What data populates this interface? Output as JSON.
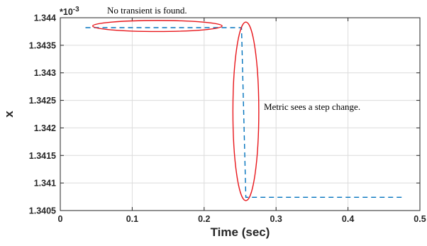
{
  "chart_data": {
    "type": "line",
    "xlabel": "Time (sec)",
    "ylabel": "x",
    "xlim": [
      0,
      0.5
    ],
    "ylim": [
      1.3405,
      1.344
    ],
    "y_exponent_label": "*10",
    "y_exponent_power": "-3",
    "x_ticks": [
      "0",
      "0.1",
      "0.2",
      "0.3",
      "0.4",
      "0.5"
    ],
    "y_ticks": [
      "1.3405",
      "1.341",
      "1.3415",
      "1.342",
      "1.3425",
      "1.343",
      "1.3435",
      "1.344"
    ],
    "grid": true,
    "series": [
      {
        "color": "#0072BD",
        "style": "dashed",
        "x": [
          0.035,
          0.252,
          0.258,
          0.475
        ],
        "y": [
          1.34382,
          1.34382,
          1.34074,
          1.34074
        ]
      }
    ],
    "annotations": [
      {
        "text": "No transient is found.",
        "shape": "ellipse",
        "color": "#E8161B",
        "center": [
          0.135,
          1.34385
        ],
        "radii": [
          0.09,
          0.0001
        ]
      },
      {
        "text": "Metric sees a step change.",
        "shape": "ellipse",
        "color": "#E8161B",
        "center": [
          0.258,
          1.3423
        ],
        "radii": [
          0.018,
          0.00162
        ]
      }
    ]
  }
}
